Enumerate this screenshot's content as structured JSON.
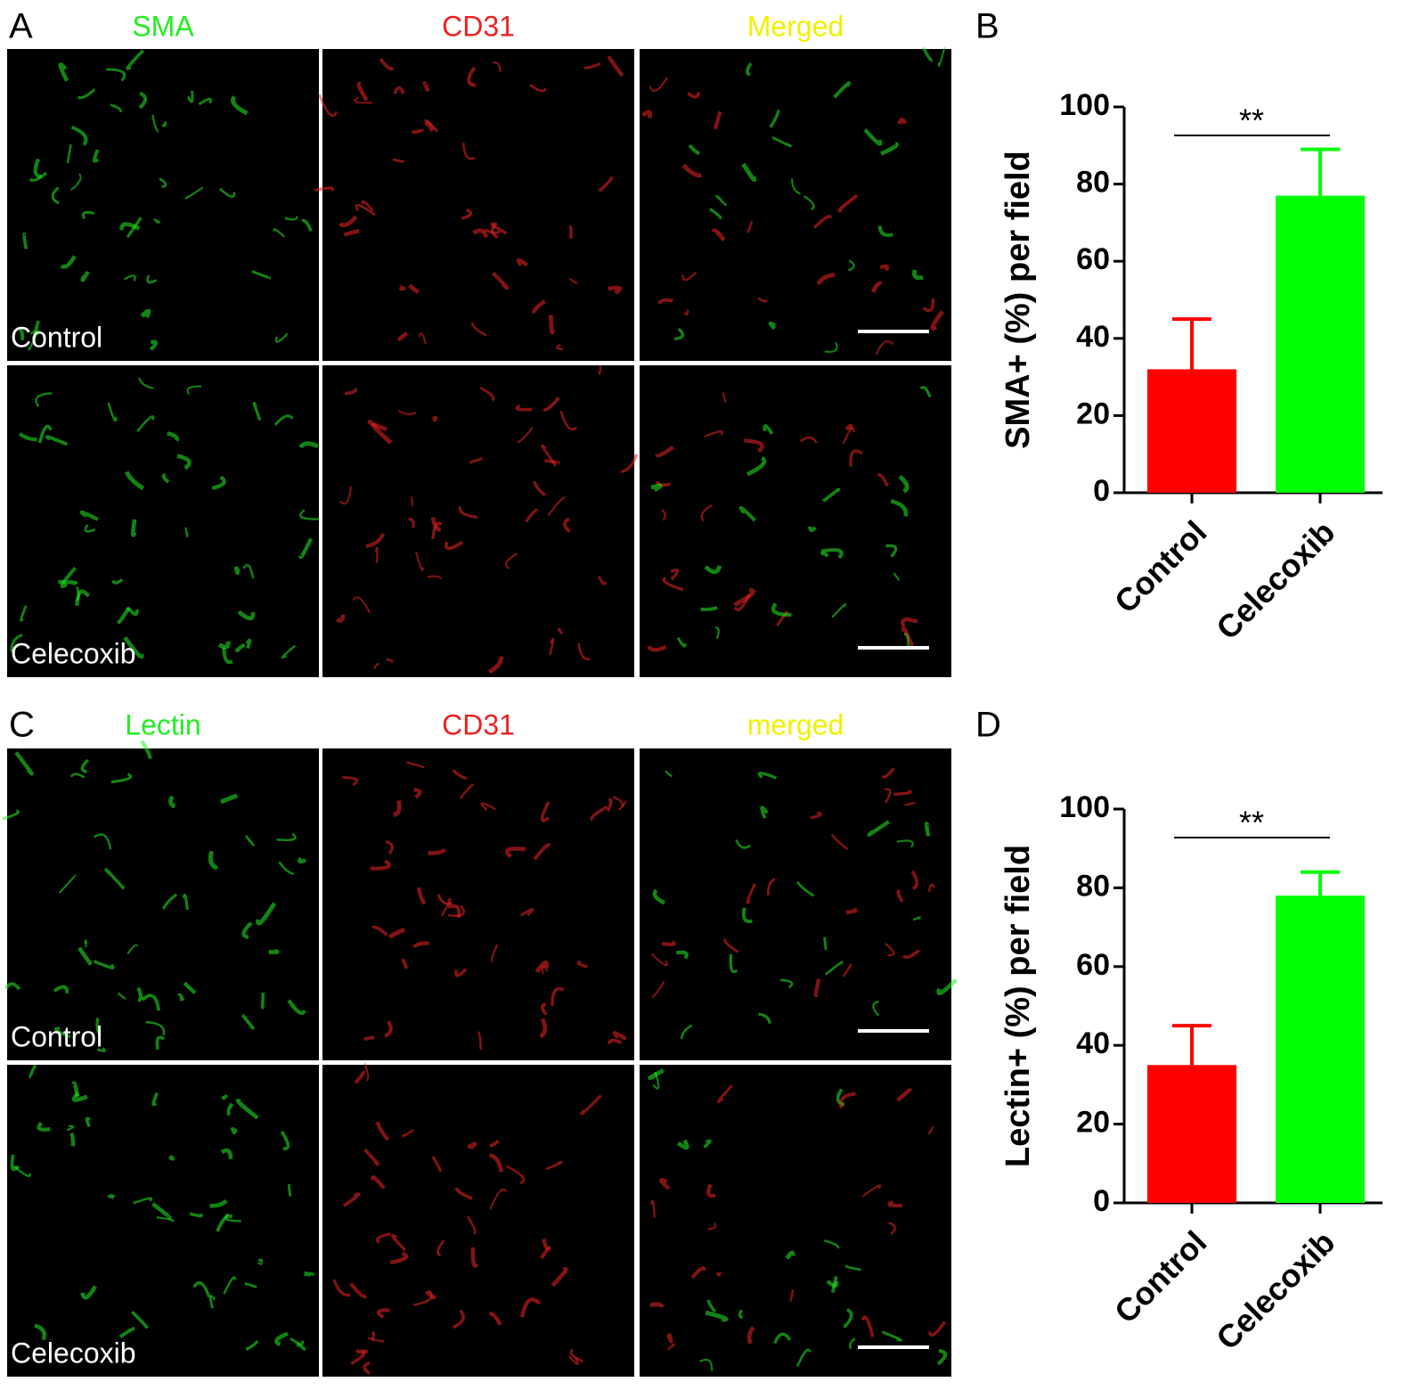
{
  "panel_labels": [
    "A",
    "B",
    "C",
    "D"
  ],
  "image_panels": [
    {
      "channels": [
        "SMA",
        "CD31",
        "Merged"
      ],
      "channel_colors": [
        "#22ee22",
        "#ee2222",
        "#f0f000"
      ],
      "rows": [
        "Control",
        "Celecoxib"
      ]
    },
    {
      "channels": [
        "Lectin",
        "CD31",
        "merged"
      ],
      "channel_colors": [
        "#22ee22",
        "#ee2222",
        "#f0f000"
      ],
      "rows": [
        "Control",
        "Celecoxib"
      ]
    }
  ],
  "chart_data": [
    {
      "type": "bar",
      "y_label": "SMA+ (%) per field",
      "categories": [
        "Control",
        "Celecoxib"
      ],
      "values": [
        32,
        77
      ],
      "errors": [
        13,
        12
      ],
      "colors": [
        "#ff0000",
        "#00ff00"
      ],
      "ylim": [
        0,
        100
      ],
      "yticks": [
        0,
        20,
        40,
        60,
        80,
        100
      ],
      "annotation": "**"
    },
    {
      "type": "bar",
      "y_label": "Lectin+ (%) per field",
      "categories": [
        "Control",
        "Celecoxib"
      ],
      "values": [
        35,
        78
      ],
      "errors": [
        10,
        6
      ],
      "colors": [
        "#ff0000",
        "#00ff00"
      ],
      "ylim": [
        0,
        100
      ],
      "yticks": [
        0,
        20,
        40,
        60,
        80,
        100
      ],
      "annotation": "**"
    }
  ]
}
